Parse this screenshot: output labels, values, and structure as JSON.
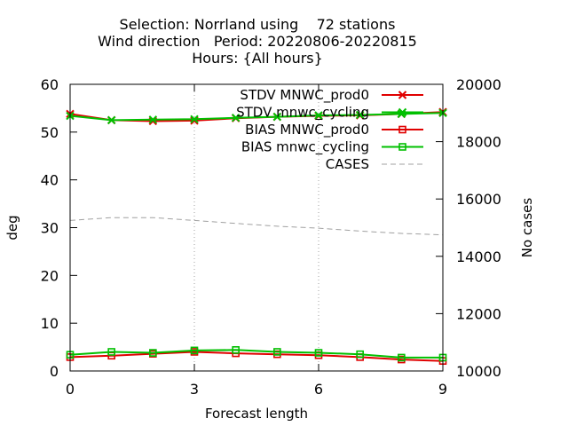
{
  "chart_data": {
    "type": "line",
    "title_lines": [
      "Selection: Norrland using    72 stations",
      "Wind direction   Period: 20220806-20220815",
      "Hours: {All hours}"
    ],
    "xlabel": "Forecast length",
    "ylabel": "deg",
    "y2label": "No cases",
    "xlim": [
      0,
      9
    ],
    "ylim": [
      0,
      60
    ],
    "y2lim": [
      10000,
      20000
    ],
    "x_ticks": [
      0,
      3,
      6,
      9
    ],
    "y_ticks": [
      0,
      10,
      20,
      30,
      40,
      50,
      60
    ],
    "y2_ticks": [
      10000,
      12000,
      14000,
      16000,
      18000,
      20000
    ],
    "grid": "dotted vertical lines at x ticks",
    "legend_position": "top-right",
    "series": [
      {
        "name": "STDV MNWC_prod0",
        "axis": "y",
        "color": "#e00000",
        "marker": "x",
        "x": [
          0,
          1,
          2,
          3,
          4,
          5,
          6,
          7,
          8,
          9
        ],
        "values": [
          53.8,
          52.5,
          52.3,
          52.4,
          52.9,
          53.2,
          53.4,
          53.5,
          53.8,
          54.2
        ]
      },
      {
        "name": "STDV mnwc_cycling",
        "axis": "y",
        "color": "#00c000",
        "marker": "x",
        "x": [
          0,
          1,
          2,
          3,
          4,
          5,
          6,
          7,
          8,
          9
        ],
        "values": [
          53.4,
          52.5,
          52.6,
          52.7,
          53.0,
          53.2,
          53.5,
          53.6,
          53.8,
          54.0
        ]
      },
      {
        "name": "BIAS MNWC_prod0",
        "axis": "y",
        "color": "#e00000",
        "marker": "square",
        "x": [
          0,
          1,
          2,
          3,
          4,
          5,
          6,
          7,
          8,
          9
        ],
        "values": [
          2.9,
          3.2,
          3.6,
          4.0,
          3.7,
          3.5,
          3.3,
          2.9,
          2.4,
          2.1
        ]
      },
      {
        "name": "BIAS mnwc_cycling",
        "axis": "y",
        "color": "#00c000",
        "marker": "square",
        "x": [
          0,
          1,
          2,
          3,
          4,
          5,
          6,
          7,
          8,
          9
        ],
        "values": [
          3.4,
          4.0,
          3.8,
          4.3,
          4.4,
          4.0,
          3.8,
          3.5,
          2.8,
          2.8
        ]
      },
      {
        "name": "CASES",
        "axis": "y2",
        "color": "#a0a0a0",
        "marker": "none",
        "x": [
          0,
          1,
          2,
          3,
          4,
          5,
          6,
          7,
          8,
          9
        ],
        "values": [
          15250,
          15350,
          15350,
          15250,
          15150,
          15050,
          14980,
          14880,
          14800,
          14750
        ]
      }
    ]
  }
}
